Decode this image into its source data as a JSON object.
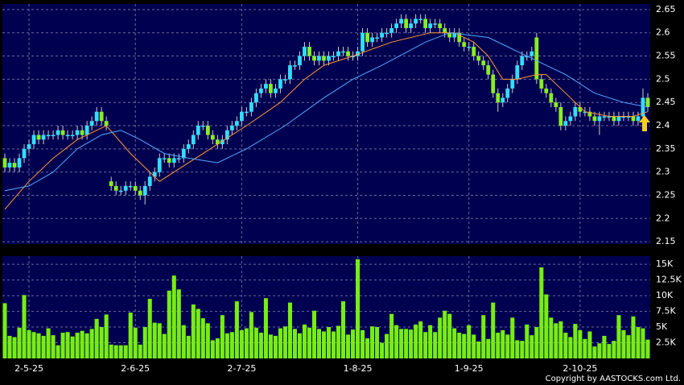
{
  "chart_data": [
    {
      "type": "candlestick",
      "categories": [
        null,
        null,
        null,
        null,
        null,
        "2-5-25",
        null,
        null,
        null,
        null,
        null,
        null,
        null,
        null,
        null,
        null,
        null,
        null,
        null,
        null,
        null,
        null,
        null,
        null,
        null,
        null,
        null,
        "2-6-25",
        null,
        null,
        null,
        null,
        null,
        null,
        null,
        null,
        null,
        null,
        null,
        null,
        null,
        null,
        null,
        null,
        null,
        null,
        null,
        null,
        null,
        "2-7-25",
        null,
        null,
        null,
        null,
        null,
        null,
        null,
        null,
        null,
        null,
        null,
        null,
        null,
        null,
        null,
        null,
        null,
        null,
        null,
        null,
        null,
        null,
        null,
        "1-8-25",
        null,
        null,
        null,
        null,
        null,
        null,
        null,
        null,
        null,
        null,
        null,
        null,
        null,
        null,
        null,
        null,
        null,
        null,
        null,
        null,
        null,
        null,
        "1-9-25",
        null,
        null,
        null,
        null,
        null,
        null,
        null,
        null,
        null,
        null,
        null,
        null,
        null,
        null,
        null,
        null,
        null,
        null,
        null,
        null,
        null,
        null,
        "2-10-25",
        null,
        null,
        null,
        null,
        null,
        null,
        null,
        null,
        null,
        null,
        null,
        null,
        null,
        null
      ],
      "open": [
        2.33,
        2.31,
        2.32,
        2.31,
        2.33,
        2.35,
        2.36,
        2.38,
        2.37,
        2.38,
        2.38,
        2.38,
        2.39,
        2.38,
        2.38,
        2.38,
        2.39,
        2.38,
        2.4,
        2.41,
        2.43,
        2.41,
        2.28,
        2.27,
        2.26,
        2.26,
        2.27,
        2.27,
        2.26,
        2.25,
        2.27,
        2.29,
        2.3,
        2.33,
        2.33,
        2.32,
        2.33,
        2.33,
        2.35,
        2.36,
        2.38,
        2.4,
        2.4,
        2.38,
        2.37,
        2.36,
        2.37,
        2.39,
        2.4,
        2.41,
        2.43,
        2.43,
        2.45,
        2.47,
        2.48,
        2.49,
        2.47,
        2.48,
        2.5,
        2.5,
        2.53,
        2.53,
        2.55,
        2.57,
        2.55,
        2.54,
        2.55,
        2.54,
        2.55,
        2.55,
        2.56,
        2.56,
        2.55,
        2.55,
        2.56,
        2.6,
        2.58,
        2.59,
        2.59,
        2.6,
        2.6,
        2.61,
        2.62,
        2.63,
        2.61,
        2.62,
        2.63,
        2.63,
        2.61,
        2.62,
        2.62,
        2.61,
        2.6,
        2.59,
        2.6,
        2.58,
        2.57,
        2.57,
        2.55,
        2.54,
        2.53,
        2.51,
        2.47,
        2.45,
        2.46,
        2.48,
        2.5,
        2.53,
        2.55,
        2.55,
        2.59,
        2.5,
        2.48,
        2.47,
        2.45,
        2.44,
        2.4,
        2.41,
        2.42,
        2.44,
        2.43,
        2.43,
        2.42,
        2.41,
        2.42,
        2.42,
        2.42,
        2.41,
        2.42,
        2.42,
        2.42,
        2.41,
        2.42,
        2.46
      ],
      "high": [
        2.34,
        2.33,
        2.33,
        2.34,
        2.36,
        2.37,
        2.39,
        2.39,
        2.39,
        2.39,
        2.39,
        2.4,
        2.4,
        2.39,
        2.39,
        2.4,
        2.4,
        2.41,
        2.42,
        2.44,
        2.44,
        2.42,
        2.29,
        2.28,
        2.27,
        2.28,
        2.28,
        2.28,
        2.27,
        2.28,
        2.3,
        2.31,
        2.34,
        2.34,
        2.34,
        2.34,
        2.34,
        2.36,
        2.37,
        2.39,
        2.41,
        2.41,
        2.41,
        2.39,
        2.38,
        2.38,
        2.4,
        2.41,
        2.42,
        2.44,
        2.44,
        2.46,
        2.48,
        2.49,
        2.5,
        2.5,
        2.49,
        2.51,
        2.51,
        2.54,
        2.54,
        2.56,
        2.58,
        2.58,
        2.56,
        2.56,
        2.56,
        2.56,
        2.56,
        2.57,
        2.57,
        2.57,
        2.56,
        2.57,
        2.61,
        2.61,
        2.6,
        2.6,
        2.61,
        2.61,
        2.62,
        2.63,
        2.64,
        2.64,
        2.63,
        2.64,
        2.64,
        2.64,
        2.63,
        2.63,
        2.63,
        2.62,
        2.61,
        2.61,
        2.61,
        2.59,
        2.58,
        2.58,
        2.56,
        2.55,
        2.54,
        2.52,
        2.48,
        2.47,
        2.49,
        2.51,
        2.54,
        2.56,
        2.56,
        2.57,
        2.6,
        2.51,
        2.49,
        2.48,
        2.46,
        2.45,
        2.42,
        2.43,
        2.45,
        2.45,
        2.44,
        2.44,
        2.43,
        2.43,
        2.43,
        2.43,
        2.43,
        2.43,
        2.43,
        2.43,
        2.43,
        2.43,
        2.48,
        2.47
      ],
      "low": [
        2.3,
        2.3,
        2.3,
        2.3,
        2.32,
        2.34,
        2.35,
        2.36,
        2.36,
        2.37,
        2.37,
        2.37,
        2.37,
        2.37,
        2.37,
        2.37,
        2.37,
        2.37,
        2.39,
        2.4,
        2.4,
        2.39,
        2.26,
        2.25,
        2.25,
        2.25,
        2.26,
        2.25,
        2.24,
        2.23,
        2.26,
        2.28,
        2.29,
        2.32,
        2.31,
        2.31,
        2.32,
        2.32,
        2.34,
        2.35,
        2.37,
        2.39,
        2.37,
        2.36,
        2.35,
        2.35,
        2.36,
        2.38,
        2.39,
        2.4,
        2.42,
        2.42,
        2.44,
        2.46,
        2.47,
        2.46,
        2.46,
        2.47,
        2.49,
        2.49,
        2.52,
        2.52,
        2.54,
        2.54,
        2.53,
        2.53,
        2.53,
        2.53,
        2.54,
        2.54,
        2.55,
        2.54,
        2.54,
        2.54,
        2.55,
        2.57,
        2.57,
        2.58,
        2.58,
        2.59,
        2.59,
        2.6,
        2.61,
        2.6,
        2.6,
        2.61,
        2.62,
        2.6,
        2.6,
        2.61,
        2.6,
        2.59,
        2.58,
        2.58,
        2.57,
        2.56,
        2.56,
        2.54,
        2.53,
        2.52,
        2.5,
        2.46,
        2.43,
        2.44,
        2.45,
        2.47,
        2.49,
        2.52,
        2.54,
        2.54,
        2.49,
        2.47,
        2.46,
        2.44,
        2.43,
        2.39,
        2.39,
        2.4,
        2.41,
        2.42,
        2.42,
        2.41,
        2.4,
        2.38,
        2.41,
        2.41,
        2.4,
        2.4,
        2.41,
        2.41,
        2.4,
        2.4,
        2.41,
        2.43
      ],
      "close": [
        2.31,
        2.32,
        2.31,
        2.33,
        2.35,
        2.36,
        2.38,
        2.37,
        2.38,
        2.38,
        2.38,
        2.39,
        2.38,
        2.38,
        2.38,
        2.39,
        2.38,
        2.4,
        2.41,
        2.43,
        2.41,
        2.4,
        2.27,
        2.26,
        2.26,
        2.27,
        2.27,
        2.26,
        2.25,
        2.27,
        2.29,
        2.3,
        2.33,
        2.33,
        2.32,
        2.33,
        2.33,
        2.35,
        2.36,
        2.38,
        2.4,
        2.4,
        2.38,
        2.37,
        2.36,
        2.37,
        2.39,
        2.4,
        2.41,
        2.43,
        2.43,
        2.45,
        2.47,
        2.48,
        2.49,
        2.47,
        2.48,
        2.5,
        2.5,
        2.53,
        2.53,
        2.55,
        2.57,
        2.55,
        2.54,
        2.55,
        2.54,
        2.55,
        2.55,
        2.56,
        2.56,
        2.55,
        2.55,
        2.56,
        2.6,
        2.58,
        2.59,
        2.59,
        2.6,
        2.6,
        2.61,
        2.62,
        2.63,
        2.61,
        2.62,
        2.63,
        2.63,
        2.61,
        2.62,
        2.62,
        2.61,
        2.6,
        2.59,
        2.6,
        2.58,
        2.57,
        2.57,
        2.55,
        2.54,
        2.53,
        2.51,
        2.47,
        2.45,
        2.46,
        2.48,
        2.5,
        2.53,
        2.55,
        2.55,
        2.56,
        2.5,
        2.48,
        2.47,
        2.45,
        2.44,
        2.4,
        2.41,
        2.42,
        2.44,
        2.43,
        2.43,
        2.42,
        2.41,
        2.42,
        2.42,
        2.42,
        2.41,
        2.42,
        2.42,
        2.42,
        2.41,
        2.42,
        2.46,
        2.44
      ],
      "up_color": "#33ddff",
      "down_color": "#88ee22",
      "lines": [
        {
          "color": "#ff9933",
          "x": [
            0,
            5,
            10,
            15,
            21,
            26,
            32,
            38,
            44,
            50,
            57,
            62,
            66,
            72,
            80,
            88,
            93,
            97,
            100,
            103,
            106,
            110,
            112,
            116,
            120,
            125,
            130,
            133
          ],
          "values": [
            2.22,
            2.28,
            2.33,
            2.37,
            2.4,
            2.34,
            2.28,
            2.32,
            2.36,
            2.4,
            2.45,
            2.5,
            2.53,
            2.55,
            2.58,
            2.6,
            2.6,
            2.58,
            2.55,
            2.5,
            2.5,
            2.51,
            2.51,
            2.47,
            2.43,
            2.42,
            2.42,
            2.43
          ]
        },
        {
          "color": "#55aaff",
          "x": [
            0,
            5,
            10,
            15,
            20,
            24,
            28,
            33,
            38,
            44,
            50,
            58,
            66,
            72,
            78,
            87,
            92,
            100,
            104,
            108,
            112,
            116,
            122,
            128,
            133
          ],
          "values": [
            2.26,
            2.27,
            2.3,
            2.35,
            2.38,
            2.39,
            2.37,
            2.34,
            2.33,
            2.32,
            2.35,
            2.4,
            2.46,
            2.5,
            2.53,
            2.58,
            2.6,
            2.59,
            2.57,
            2.55,
            2.53,
            2.51,
            2.47,
            2.45,
            2.44
          ]
        }
      ],
      "ylim": [
        2.145,
        2.662
      ],
      "yticks": [
        2.15,
        2.2,
        2.25,
        2.3,
        2.35,
        2.4,
        2.45,
        2.5,
        2.55,
        2.6,
        2.65
      ],
      "grid": true
    },
    {
      "type": "bar",
      "values": [
        8800,
        3600,
        3400,
        4900,
        10100,
        4500,
        4200,
        4000,
        3600,
        4800,
        3700,
        2100,
        4100,
        4200,
        3500,
        4100,
        4400,
        4000,
        4700,
        6300,
        5000,
        7000,
        2200,
        2100,
        2100,
        2100,
        7300,
        4900,
        2200,
        5000,
        9500,
        5700,
        5600,
        3900,
        10800,
        13200,
        11000,
        5300,
        3600,
        8600,
        7900,
        6400,
        5600,
        2900,
        3200,
        6900,
        4000,
        4200,
        9100,
        4500,
        4800,
        7400,
        4900,
        4100,
        9600,
        3800,
        3600,
        4800,
        5100,
        8900,
        4700,
        4000,
        5400,
        4900,
        7600,
        4700,
        4300,
        5000,
        4300,
        5200,
        9100,
        3800,
        4600,
        15800,
        4500,
        3200,
        5100,
        5000,
        2500,
        3900,
        7100,
        5300,
        4700,
        4700,
        4600,
        5400,
        5900,
        4200,
        5300,
        4200,
        6500,
        7600,
        7100,
        4800,
        4100,
        3900,
        5300,
        3800,
        2700,
        6900,
        3100,
        8900,
        4100,
        4500,
        3800,
        6500,
        2900,
        2800,
        5400,
        3700,
        5000,
        14500,
        10200,
        6500,
        5600,
        5900,
        4100,
        3400,
        5500,
        4500,
        3100,
        4300,
        1900,
        2400,
        3600,
        2300,
        2800,
        6900,
        4500,
        3700,
        6700,
        5000,
        4800,
        3000
      ],
      "color": "#77ee11",
      "ylim": [
        0,
        16300
      ],
      "yticks": [
        {
          "value": 2500,
          "label": "2.5K"
        },
        {
          "value": 5000,
          "label": "5K"
        },
        {
          "value": 7500,
          "label": "7.5K"
        },
        {
          "value": 10000,
          "label": "10K"
        },
        {
          "value": 12500,
          "label": "12.5K"
        },
        {
          "value": 15000,
          "label": "15K"
        }
      ],
      "grid": true
    }
  ],
  "footer": "Copyright by AASTOCKS.com Ltd."
}
